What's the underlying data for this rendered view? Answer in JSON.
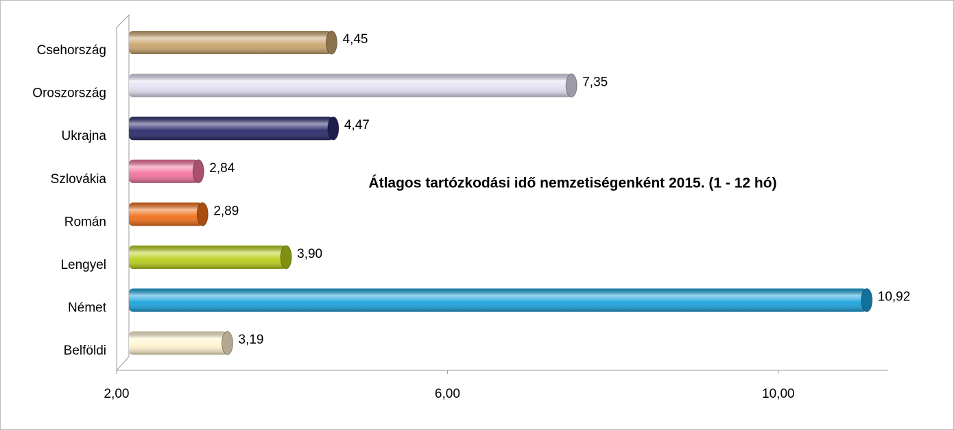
{
  "chart_data": {
    "type": "bar",
    "orientation": "horizontal",
    "title": "Átlagos tartózkodási idő nemzetiségenként 2015. (1 - 12 hó)",
    "categories": [
      "Csehország",
      "Oroszország",
      "Ukrajna",
      "Szlovákia",
      "Román",
      "Lengyel",
      "Német",
      "Belföldi"
    ],
    "values": [
      4.45,
      7.35,
      4.47,
      2.84,
      2.89,
      3.9,
      10.92,
      3.19
    ],
    "value_labels": [
      "4,45",
      "7,35",
      "4,47",
      "2,84",
      "2,89",
      "3,90",
      "10,92",
      "3,19"
    ],
    "colors": [
      "#c9a46e",
      "#e2def2",
      "#2b2a6c",
      "#f3729f",
      "#f07018",
      "#b9cf1c",
      "#1ba3dd",
      "#fff3cf"
    ],
    "xlim": [
      2,
      11.3
    ],
    "xticks": [
      {
        "value": 2,
        "label": "2,00"
      },
      {
        "value": 6,
        "label": "6,00"
      },
      {
        "value": 10,
        "label": "10,00"
      }
    ],
    "grid": false
  }
}
